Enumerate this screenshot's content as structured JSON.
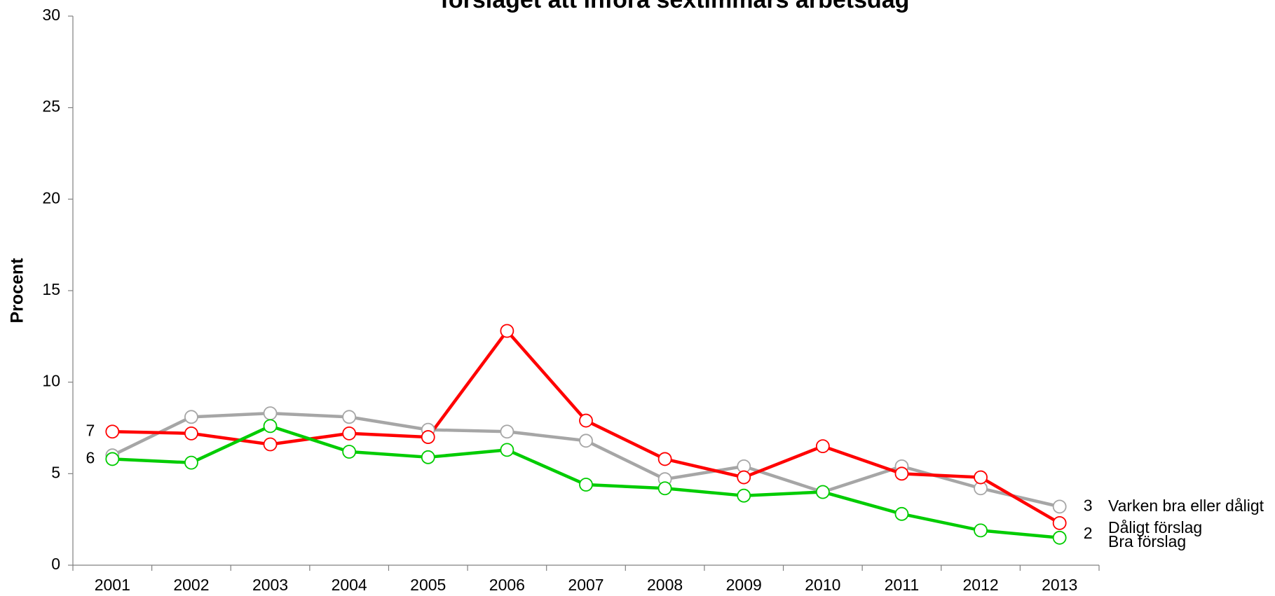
{
  "chart_data": {
    "type": "line",
    "title": "förslaget att införa sextimmars arbetsdag",
    "ylabel": "Procent",
    "categories": [
      "2001",
      "2002",
      "2003",
      "2004",
      "2005",
      "2006",
      "2007",
      "2008",
      "2009",
      "2010",
      "2011",
      "2012",
      "2013"
    ],
    "ylim": [
      0,
      30
    ],
    "yticks": [
      0,
      5,
      10,
      15,
      20,
      25,
      30
    ],
    "grid": false,
    "series": [
      {
        "name": "Varken bra eller dåligt",
        "color": "#a6a6a6",
        "values": [
          6.0,
          8.1,
          8.3,
          8.1,
          7.4,
          7.3,
          6.8,
          4.7,
          5.4,
          4.0,
          5.4,
          4.2,
          3.2
        ],
        "value_labels": [
          null,
          null,
          null,
          null,
          null,
          null,
          null,
          null,
          null,
          null,
          null,
          null,
          "3"
        ]
      },
      {
        "name": "Dåligt förslag",
        "color": "#ff0000",
        "values": [
          7.3,
          7.2,
          6.6,
          7.2,
          7.0,
          12.8,
          7.9,
          5.8,
          4.8,
          6.5,
          5.0,
          4.8,
          2.3
        ],
        "value_labels": [
          "7",
          null,
          null,
          null,
          null,
          null,
          null,
          null,
          null,
          null,
          null,
          null,
          null
        ]
      },
      {
        "name": "Bra förslag",
        "color": "#00cc00",
        "values": [
          5.8,
          5.6,
          7.6,
          6.2,
          5.9,
          6.3,
          4.4,
          4.2,
          3.8,
          4.0,
          2.8,
          1.9,
          1.5
        ],
        "value_labels": [
          "6",
          null,
          null,
          null,
          null,
          null,
          null,
          null,
          null,
          null,
          null,
          null,
          "2"
        ]
      }
    ]
  }
}
